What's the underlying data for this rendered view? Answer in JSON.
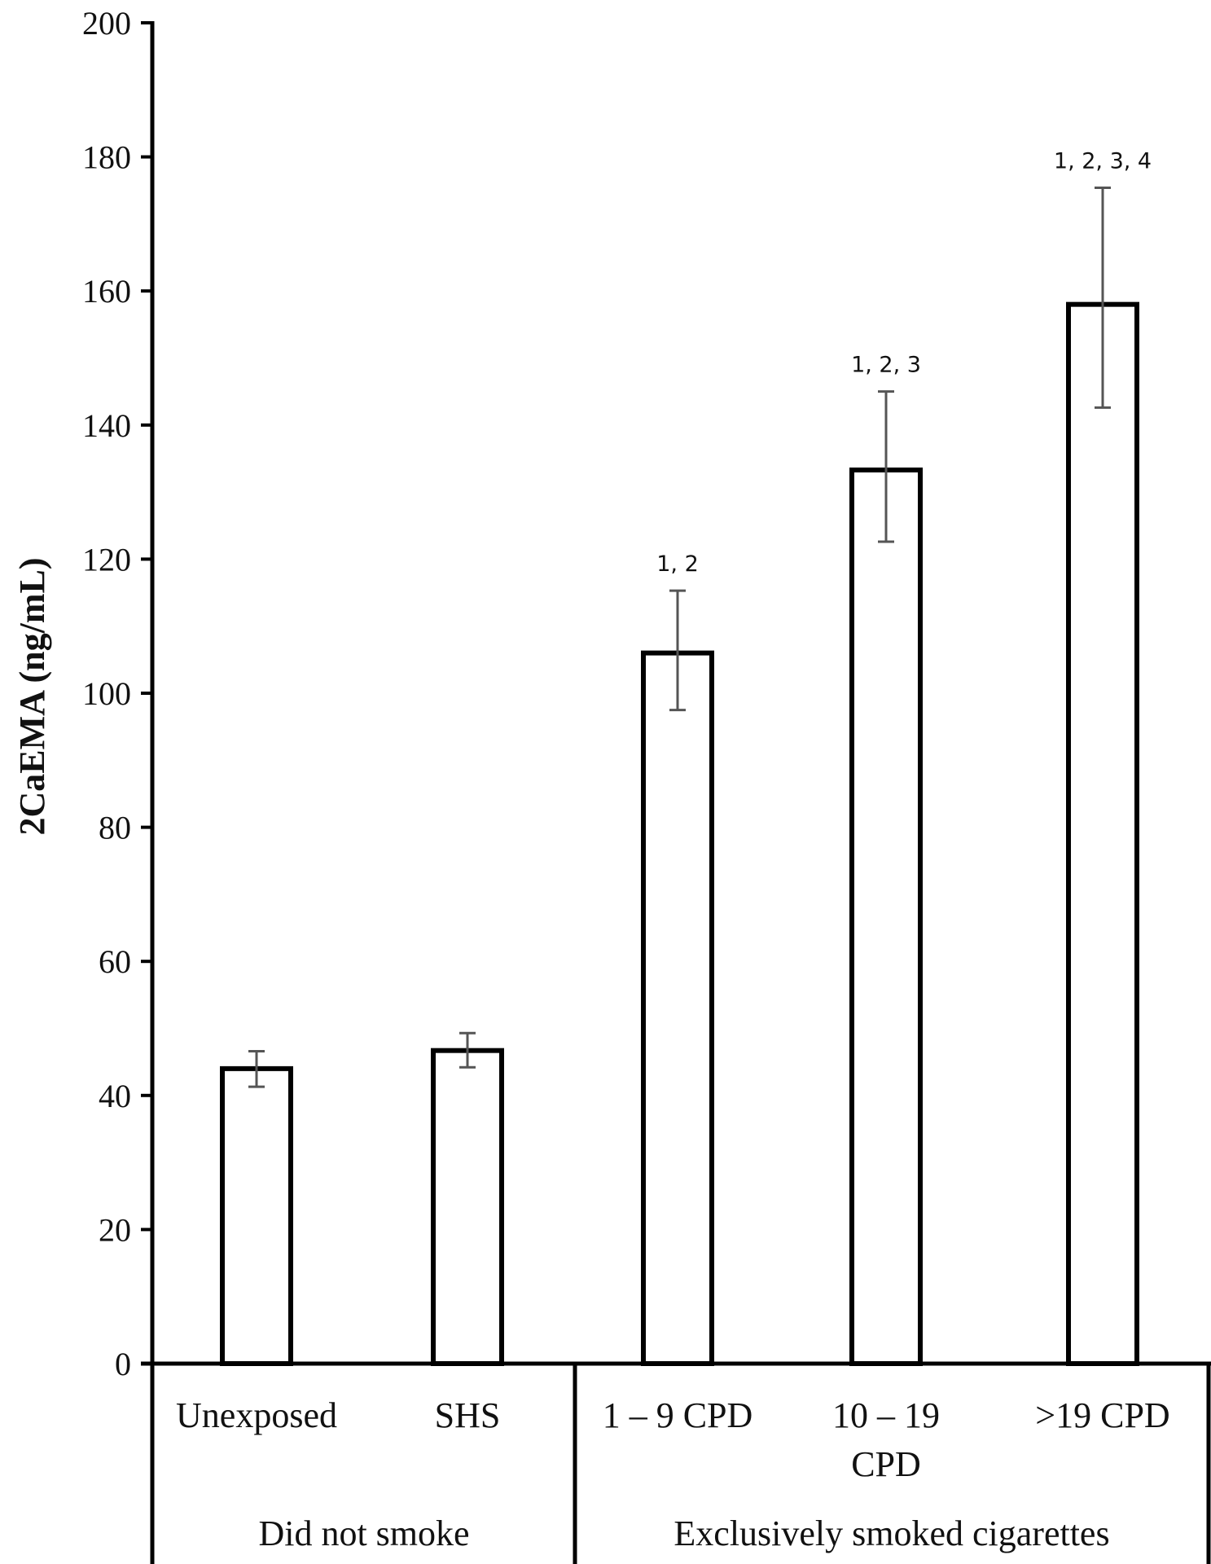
{
  "chart_data": {
    "type": "bar",
    "ylabel": "2CaEMA (ng/mL)",
    "xlabel": "",
    "title": "",
    "ylim": [
      0,
      200
    ],
    "yticks": [
      0,
      20,
      40,
      60,
      80,
      100,
      120,
      140,
      160,
      180,
      200
    ],
    "categories": [
      [
        "Unexposed"
      ],
      [
        "SHS"
      ],
      [
        "1 – 9 CPD"
      ],
      [
        "10 – 19",
        "CPD"
      ],
      [
        ">19 CPD"
      ]
    ],
    "values": [
      44,
      46.7,
      106,
      133.3,
      158
    ],
    "error_low": [
      41.3,
      44.2,
      97.5,
      122.6,
      142.6
    ],
    "error_high": [
      46.6,
      49.3,
      115.3,
      145,
      175.4
    ],
    "annotations": [
      "",
      "",
      "1, 2",
      "1, 2, 3",
      "1, 2, 3, 4"
    ],
    "groups": [
      {
        "label": "Did not smoke",
        "members": [
          0,
          1
        ]
      },
      {
        "label": "Exclusively smoked cigarettes",
        "members": [
          2,
          3,
          4
        ]
      }
    ],
    "grid": false,
    "legend": "none",
    "bar_fill": "#ffffff",
    "bar_stroke": "#000000",
    "error_color": "#555555"
  }
}
